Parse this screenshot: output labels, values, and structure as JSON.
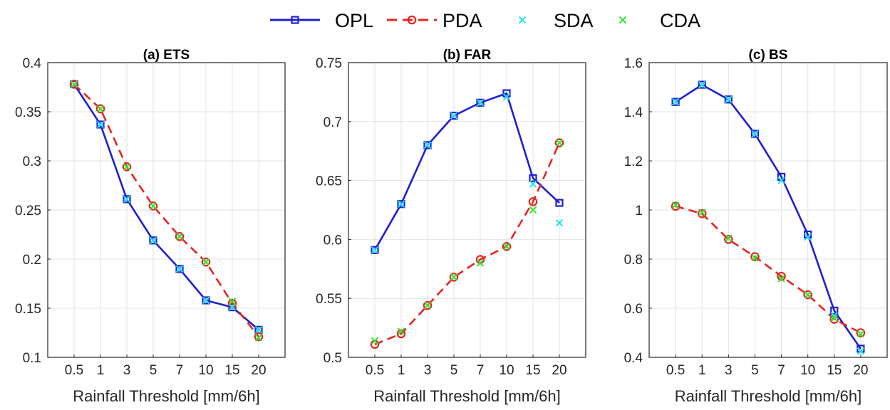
{
  "legend": {
    "entries": [
      {
        "label": "OPL",
        "color": "#1f1fd1",
        "line": "solid",
        "marker": "square"
      },
      {
        "label": "PDA",
        "color": "#e8231f",
        "line": "dashed",
        "marker": "circle"
      },
      {
        "label": "SDA",
        "color": "#19e6f0",
        "line": "none",
        "marker": "x"
      },
      {
        "label": "CDA",
        "color": "#2ee62e",
        "line": "none",
        "marker": "x"
      }
    ]
  },
  "chart_data": [
    {
      "type": "line",
      "title": "(a) ETS",
      "xlabel": "Rainfall Threshold [mm/6h]",
      "ylabel": "",
      "categories": [
        "0.5",
        "1",
        "3",
        "5",
        "7",
        "10",
        "15",
        "20"
      ],
      "ylim": [
        0.1,
        0.4
      ],
      "yticks": [
        "0.1",
        "0.15",
        "0.2",
        "0.25",
        "0.3",
        "0.35",
        "0.4"
      ],
      "grid": true,
      "series": [
        {
          "name": "OPL",
          "values": [
            0.378,
            0.337,
            0.261,
            0.219,
            0.19,
            0.158,
            0.151,
            0.128
          ]
        },
        {
          "name": "PDA",
          "values": [
            0.378,
            0.353,
            0.294,
            0.254,
            0.223,
            0.197,
            0.155,
            0.121
          ]
        },
        {
          "name": "SDA",
          "values": [
            0.378,
            0.337,
            0.261,
            0.219,
            0.19,
            0.158,
            0.151,
            0.128
          ]
        },
        {
          "name": "CDA",
          "values": [
            0.378,
            0.353,
            0.294,
            0.254,
            0.223,
            0.197,
            0.157,
            0.12
          ]
        }
      ]
    },
    {
      "type": "line",
      "title": "(b) FAR",
      "xlabel": "Rainfall Threshold [mm/6h]",
      "ylabel": "",
      "categories": [
        "0.5",
        "1",
        "3",
        "5",
        "7",
        "10",
        "15",
        "20"
      ],
      "ylim": [
        0.5,
        0.75
      ],
      "yticks": [
        "0.5",
        "0.55",
        "0.6",
        "0.65",
        "0.7",
        "0.75"
      ],
      "grid": true,
      "series": [
        {
          "name": "OPL",
          "values": [
            0.591,
            0.63,
            0.68,
            0.705,
            0.716,
            0.724,
            0.652,
            0.631
          ]
        },
        {
          "name": "PDA",
          "values": [
            0.511,
            0.52,
            0.544,
            0.568,
            0.583,
            0.594,
            0.632,
            0.682
          ]
        },
        {
          "name": "SDA",
          "values": [
            0.591,
            0.63,
            0.68,
            0.705,
            0.716,
            0.721,
            0.647,
            0.614
          ]
        },
        {
          "name": "CDA",
          "values": [
            0.514,
            0.522,
            0.544,
            0.568,
            0.58,
            0.594,
            0.625,
            0.682
          ]
        }
      ]
    },
    {
      "type": "line",
      "title": "(c) BS",
      "xlabel": "Rainfall Threshold [mm/6h]",
      "ylabel": "",
      "categories": [
        "0.5",
        "1",
        "3",
        "5",
        "7",
        "10",
        "15",
        "20"
      ],
      "ylim": [
        0.4,
        1.6
      ],
      "yticks": [
        "0.4",
        "0.6",
        "0.8",
        "1",
        "1.2",
        "1.4",
        "1.6"
      ],
      "grid": true,
      "series": [
        {
          "name": "OPL",
          "values": [
            1.44,
            1.51,
            1.45,
            1.31,
            1.135,
            0.9,
            0.59,
            0.435
          ]
        },
        {
          "name": "PDA",
          "values": [
            1.015,
            0.985,
            0.88,
            0.81,
            0.73,
            0.655,
            0.555,
            0.5
          ]
        },
        {
          "name": "SDA",
          "values": [
            1.44,
            1.51,
            1.45,
            1.31,
            1.12,
            0.89,
            0.57,
            0.425
          ]
        },
        {
          "name": "CDA",
          "values": [
            1.02,
            0.99,
            0.885,
            0.805,
            0.72,
            0.655,
            0.56,
            0.495
          ]
        }
      ]
    }
  ]
}
